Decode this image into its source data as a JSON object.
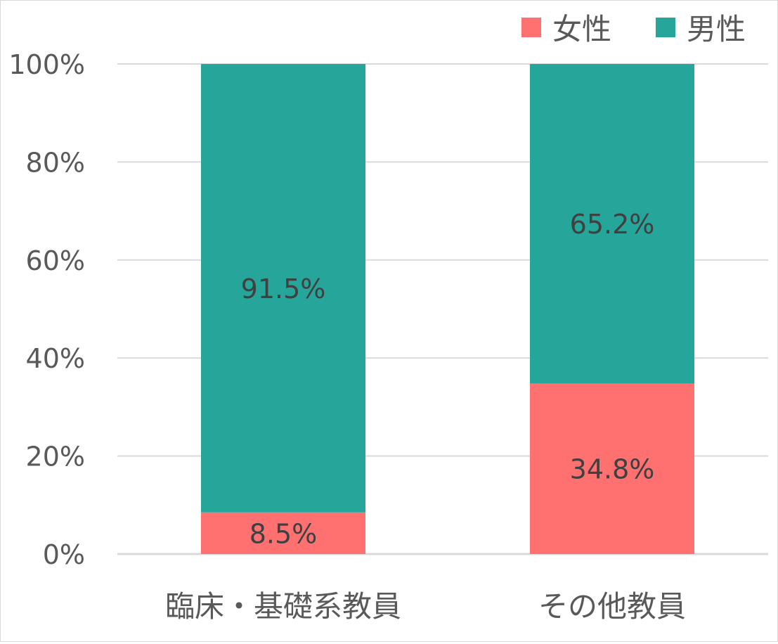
{
  "chart_data": {
    "type": "bar",
    "stacked": true,
    "categories": [
      "臨床・基礎系教員",
      "その他教員"
    ],
    "series": [
      {
        "name": "女性",
        "values": [
          8.5,
          34.8
        ],
        "labels": [
          "8.5%",
          "34.8%"
        ],
        "color": "#ff7070"
      },
      {
        "name": "男性",
        "values": [
          91.5,
          65.2
        ],
        "labels": [
          "91.5%",
          "65.2%"
        ],
        "color": "#26a69a"
      }
    ],
    "ylim": [
      0,
      100
    ],
    "yticks": [
      "0%",
      "20%",
      "40%",
      "60%",
      "80%",
      "100%"
    ],
    "grid": true,
    "legend": "top-right",
    "colors": {
      "grid": "#d9d9d9",
      "text": "#595959",
      "label": "#404040"
    }
  }
}
